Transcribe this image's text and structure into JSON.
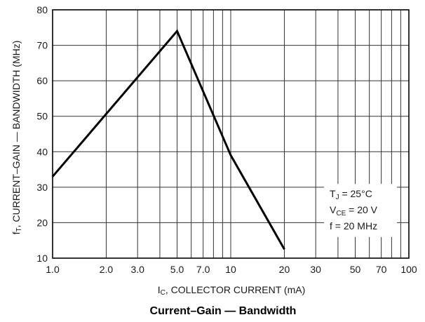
{
  "chart_data": {
    "type": "line",
    "title": "Current–Gain — Bandwidth",
    "xlabel": {
      "main": "I",
      "sub": "C",
      "rest": ", COLLECTOR CURRENT (mA)"
    },
    "ylabel": {
      "main": "f",
      "sub": "T",
      "rest": ", CURRENT–GAIN — BANDWIDTH (MHz)"
    },
    "x_scale": "log",
    "xlim": [
      1.0,
      100
    ],
    "ylim": [
      10,
      80
    ],
    "x_ticks": [
      {
        "value": 1.0,
        "label": "1.0"
      },
      {
        "value": 2.0,
        "label": "2.0"
      },
      {
        "value": 3.0,
        "label": "3.0"
      },
      {
        "value": 5.0,
        "label": "5.0"
      },
      {
        "value": 7.0,
        "label": "7.0"
      },
      {
        "value": 10,
        "label": "10"
      },
      {
        "value": 20,
        "label": "20"
      },
      {
        "value": 30,
        "label": "30"
      },
      {
        "value": 50,
        "label": "50"
      },
      {
        "value": 70,
        "label": "70"
      },
      {
        "value": 100,
        "label": "100"
      }
    ],
    "x_minor_grid": [
      4,
      6,
      8,
      9,
      40,
      60,
      80,
      90
    ],
    "y_ticks": [
      10,
      20,
      30,
      40,
      50,
      60,
      70,
      80
    ],
    "grid": true,
    "series": [
      {
        "x": [
          1.0,
          5.0,
          10,
          20
        ],
        "y": [
          33,
          74,
          39,
          12.5
        ]
      }
    ],
    "conditions_box": {
      "placement": "lower-right",
      "lines": [
        {
          "main": "T",
          "sub": "J",
          "rest": " = 25°C"
        },
        {
          "main": "V",
          "sub": "CE",
          "rest": "  = 20 V"
        },
        {
          "main": "f = 20 MHz",
          "sub": "",
          "rest": ""
        }
      ]
    },
    "colors": {
      "line": "#000000",
      "grid": "#333333",
      "background": "#ffffff"
    }
  }
}
